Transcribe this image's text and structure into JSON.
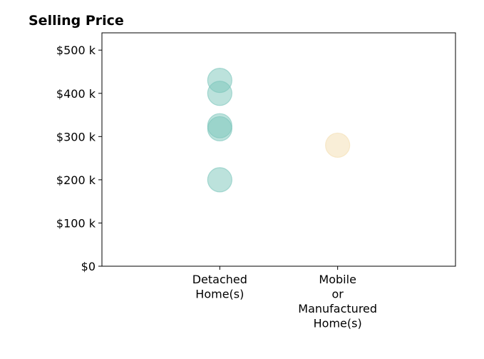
{
  "chart_data": {
    "type": "scatter",
    "title": "Selling Price",
    "xlabel": "",
    "ylabel": "",
    "categories": [
      [
        "Detached",
        "Home(s)"
      ],
      [
        "Mobile",
        "or",
        "Manufactured",
        "Home(s)"
      ]
    ],
    "x_range": [
      -1,
      2
    ],
    "ylim": [
      0,
      540000
    ],
    "y_ticks": [
      {
        "value": 0,
        "label": "$0"
      },
      {
        "value": 100000,
        "label": "$100 k"
      },
      {
        "value": 200000,
        "label": "$200 k"
      },
      {
        "value": 300000,
        "label": "$300 k"
      },
      {
        "value": 400000,
        "label": "$400 k"
      },
      {
        "value": 500000,
        "label": "$500 k"
      }
    ],
    "grid": false,
    "legend": "none",
    "series": [
      {
        "category_index": 0,
        "color": "#7ac5ba",
        "values": [
          430000,
          400000,
          325000,
          318000,
          200000
        ]
      },
      {
        "category_index": 1,
        "color": "#f3ddb0",
        "values": [
          280000
        ]
      }
    ]
  }
}
